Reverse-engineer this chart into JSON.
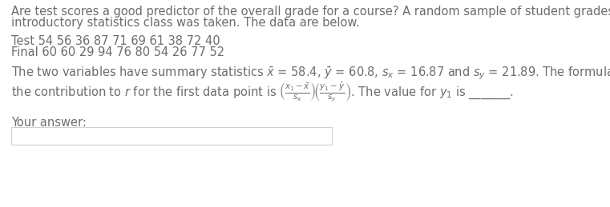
{
  "bg_color": "#ffffff",
  "text_color": "#6d6d6d",
  "line1": "Are test scores a good predictor of the overall grade for a course? A random sample of student grades in an",
  "line2": "introductory statistics class was taken. The data are below.",
  "line3": "Test 54 56 36 87 71 69 61 38 72 40",
  "line4": "Final 60 60 29 94 76 80 54 26 77 52",
  "line5": "The two variables have summary statistics $\\bar{x}$ = 58.4, $\\bar{y}$ = 60.8, $s_x$ = 16.87 and $s_y$ = 21.89. The formula for",
  "line6": "the contribution to $r$ for the first data point is $\\left(\\frac{x_1-\\bar{x}}{s_x}\\right)\\!\\left(\\frac{y_1-\\bar{y}}{s_y}\\right)$. The value for $y_1$ is _______.",
  "your_answer": "Your answer:",
  "font_size": 10.5,
  "box_color": "#d0d0d0"
}
